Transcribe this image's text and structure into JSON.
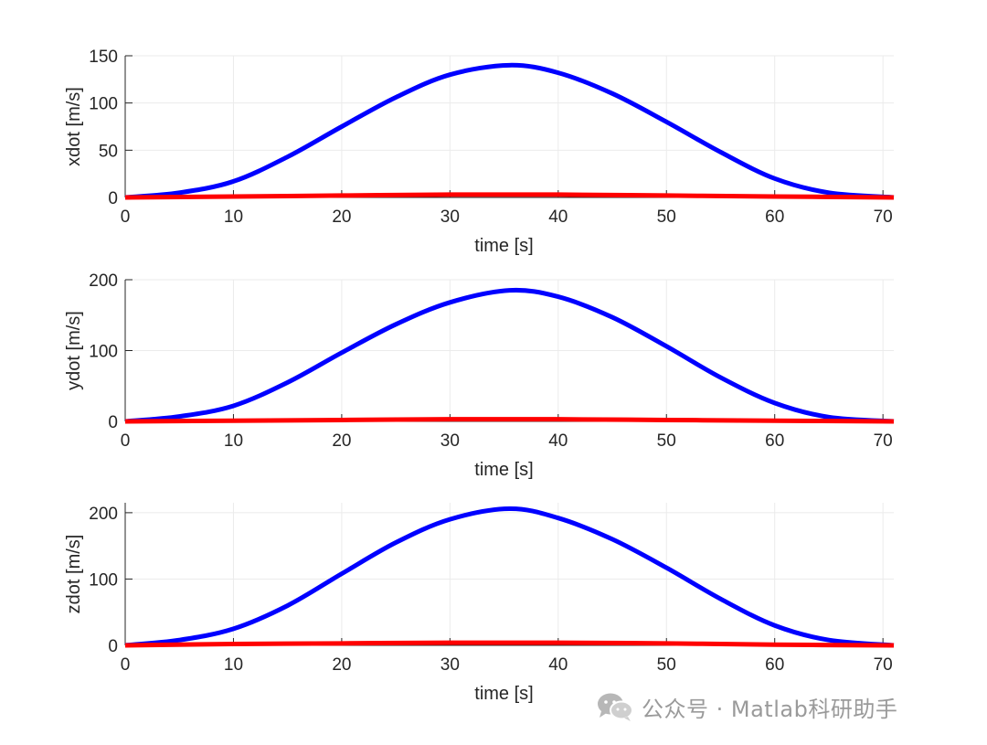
{
  "chart_data": [
    {
      "type": "line",
      "xlabel": "time [s]",
      "ylabel": "xdot [m/s]",
      "xlim": [
        0,
        71
      ],
      "ylim": [
        0,
        150
      ],
      "xticks": [
        0,
        10,
        20,
        30,
        40,
        50,
        60,
        70
      ],
      "yticks": [
        0,
        50,
        100,
        150
      ],
      "grid": true,
      "series": [
        {
          "color": "#0000ff",
          "x": [
            0,
            5,
            10,
            15,
            20,
            25,
            30,
            35.5,
            40,
            45,
            50,
            55,
            60,
            65,
            71
          ],
          "y": [
            0,
            5,
            17,
            43,
            75,
            106,
            130,
            140,
            132,
            110,
            80,
            48,
            20,
            5,
            0
          ]
        },
        {
          "color": "#ff0000",
          "x": [
            0,
            10,
            20,
            30,
            35.5,
            40,
            50,
            60,
            71
          ],
          "y": [
            0,
            1,
            2,
            3,
            3,
            3,
            2,
            1,
            0
          ]
        }
      ]
    },
    {
      "type": "line",
      "xlabel": "time [s]",
      "ylabel": "ydot [m/s]",
      "xlim": [
        0,
        71
      ],
      "ylim": [
        0,
        200
      ],
      "xticks": [
        0,
        10,
        20,
        30,
        40,
        50,
        60,
        70
      ],
      "yticks": [
        0,
        100,
        200
      ],
      "grid": true,
      "series": [
        {
          "color": "#0000ff",
          "x": [
            0,
            5,
            10,
            15,
            20,
            25,
            30,
            35.5,
            40,
            45,
            50,
            55,
            60,
            65,
            71
          ],
          "y": [
            0,
            7,
            22,
            55,
            97,
            137,
            168,
            185,
            176,
            147,
            106,
            62,
            26,
            6,
            0
          ]
        },
        {
          "color": "#ff0000",
          "x": [
            0,
            10,
            20,
            30,
            35.5,
            40,
            50,
            60,
            71
          ],
          "y": [
            0,
            1,
            2,
            3,
            3,
            3,
            2,
            1,
            0
          ]
        }
      ]
    },
    {
      "type": "line",
      "xlabel": "time [s]",
      "ylabel": "zdot [m/s]",
      "xlim": [
        0,
        71
      ],
      "ylim": [
        0,
        215
      ],
      "xticks": [
        0,
        10,
        20,
        30,
        40,
        50,
        60,
        70
      ],
      "yticks": [
        0,
        100,
        200
      ],
      "grid": true,
      "series": [
        {
          "color": "#0000ff",
          "x": [
            0,
            5,
            10,
            15,
            20,
            25,
            30,
            35.5,
            40,
            45,
            50,
            55,
            60,
            65,
            71
          ],
          "y": [
            0,
            8,
            25,
            60,
            108,
            155,
            190,
            206,
            192,
            160,
            117,
            70,
            30,
            8,
            0
          ]
        },
        {
          "color": "#ff0000",
          "x": [
            0,
            10,
            20,
            30,
            35.5,
            40,
            50,
            60,
            71
          ],
          "y": [
            0,
            2,
            3,
            4,
            4,
            4,
            3,
            1,
            0
          ]
        }
      ]
    }
  ],
  "watermark": {
    "text": "公众号 · Matlab科研助手",
    "icon": "wechat-icon"
  }
}
